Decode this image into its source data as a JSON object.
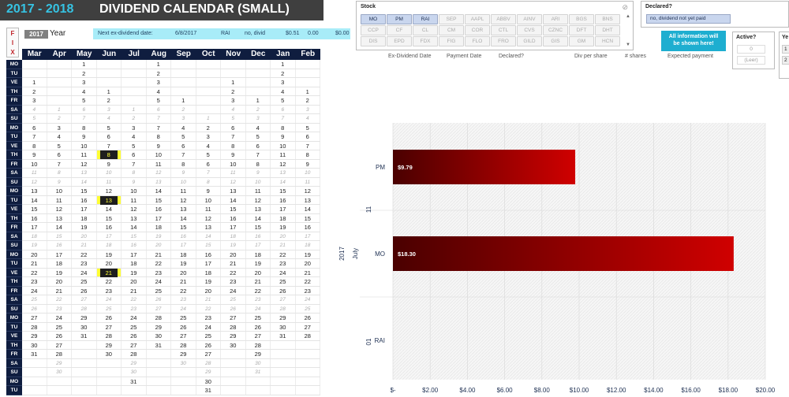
{
  "title": {
    "year_range": "2017 - 2018",
    "main": "DIVIDEND CALENDAR (SMALL)"
  },
  "fix_letters": [
    "F",
    "I",
    "X"
  ],
  "year_selector": {
    "value": "2017",
    "label": "Year"
  },
  "next_ex_dividend": {
    "label": "Next ex-dividend date:",
    "date": "6/8/2017",
    "ticker": "RAI",
    "note": "no, divid",
    "amount": "$0.51",
    "shares": "0.00",
    "expected": "$0.00"
  },
  "calendar": {
    "months": [
      "Mar",
      "Apr",
      "May",
      "Jun",
      "Jul",
      "Aug",
      "Sep",
      "Oct",
      "Nov",
      "Dec",
      "Jan",
      "Feb"
    ],
    "day_labels": [
      "MO",
      "TU",
      "VE",
      "TH",
      "FR",
      "SA",
      "SU",
      "MO",
      "TU",
      "VE",
      "TH",
      "FR",
      "SA",
      "SU",
      "MO",
      "TU",
      "VE",
      "TH",
      "FR",
      "SA",
      "SU",
      "MO",
      "TU",
      "VE",
      "TH",
      "FR",
      "SA",
      "SU",
      "MO",
      "TU",
      "VE",
      "TH",
      "FR",
      "SA",
      "SU",
      "MO",
      "TU",
      "VE",
      "TH",
      "FR",
      "SA",
      "SU",
      "MO",
      "TU",
      "VE",
      "TH",
      "FR",
      "SA",
      "SU",
      "MO",
      "TU",
      "VE",
      "TH",
      "FR",
      "SA",
      "SU",
      "MO",
      "TU",
      "VE",
      "TH",
      "FR",
      "SA",
      "SU",
      "MO",
      "TU",
      "VE",
      "TH",
      "FR",
      "SA",
      "SU",
      "MO",
      "TU",
      "VE",
      "TH",
      "FR",
      "SA",
      "SU"
    ],
    "weekend_rows": [
      5,
      6,
      12,
      13,
      19,
      20,
      26,
      27,
      33,
      34
    ],
    "rows": [
      [
        "",
        "",
        "1",
        "",
        "",
        "1",
        "",
        "",
        "",
        "",
        "1",
        ""
      ],
      [
        "",
        "",
        "2",
        "",
        "",
        "2",
        "",
        "",
        "",
        "",
        "2",
        ""
      ],
      [
        "1",
        "",
        "3",
        "",
        "",
        "3",
        "",
        "",
        "1",
        "",
        "3",
        ""
      ],
      [
        "2",
        "",
        "4",
        "1",
        "",
        "4",
        "",
        "",
        "2",
        "",
        "4",
        "1"
      ],
      [
        "3",
        "",
        "5",
        "2",
        "",
        "5",
        "1",
        "",
        "3",
        "1",
        "5",
        "2"
      ],
      [
        "4",
        "1",
        "6",
        "3",
        "1",
        "6",
        "2",
        "",
        "4",
        "2",
        "6",
        "3"
      ],
      [
        "5",
        "2",
        "7",
        "4",
        "2",
        "7",
        "3",
        "1",
        "5",
        "3",
        "7",
        "4"
      ],
      [
        "6",
        "3",
        "8",
        "5",
        "3",
        "7",
        "4",
        "2",
        "6",
        "4",
        "8",
        "5"
      ],
      [
        "7",
        "4",
        "9",
        "6",
        "4",
        "8",
        "5",
        "3",
        "7",
        "5",
        "9",
        "6"
      ],
      [
        "8",
        "5",
        "10",
        "7",
        "5",
        "9",
        "6",
        "4",
        "8",
        "6",
        "10",
        "7"
      ],
      [
        "9",
        "6",
        "11",
        "8",
        "6",
        "10",
        "7",
        "5",
        "9",
        "7",
        "11",
        "8"
      ],
      [
        "10",
        "7",
        "12",
        "9",
        "7",
        "11",
        "8",
        "6",
        "10",
        "8",
        "12",
        "9"
      ],
      [
        "11",
        "8",
        "13",
        "10",
        "8",
        "12",
        "9",
        "7",
        "11",
        "9",
        "13",
        "10"
      ],
      [
        "12",
        "9",
        "14",
        "11",
        "9",
        "13",
        "10",
        "8",
        "12",
        "10",
        "14",
        "11"
      ],
      [
        "13",
        "10",
        "15",
        "12",
        "10",
        "14",
        "11",
        "9",
        "13",
        "11",
        "15",
        "12"
      ],
      [
        "14",
        "11",
        "16",
        "13",
        "11",
        "15",
        "12",
        "10",
        "14",
        "12",
        "16",
        "13"
      ],
      [
        "15",
        "12",
        "17",
        "14",
        "12",
        "16",
        "13",
        "11",
        "15",
        "13",
        "17",
        "14"
      ],
      [
        "16",
        "13",
        "18",
        "15",
        "13",
        "17",
        "14",
        "12",
        "16",
        "14",
        "18",
        "15"
      ],
      [
        "17",
        "14",
        "19",
        "16",
        "14",
        "18",
        "15",
        "13",
        "17",
        "15",
        "19",
        "16"
      ],
      [
        "18",
        "15",
        "20",
        "17",
        "15",
        "19",
        "16",
        "14",
        "18",
        "16",
        "20",
        "17"
      ],
      [
        "19",
        "16",
        "21",
        "18",
        "16",
        "20",
        "17",
        "15",
        "19",
        "17",
        "21",
        "18"
      ],
      [
        "20",
        "17",
        "22",
        "19",
        "17",
        "21",
        "18",
        "16",
        "20",
        "18",
        "22",
        "19"
      ],
      [
        "21",
        "18",
        "23",
        "20",
        "18",
        "22",
        "19",
        "17",
        "21",
        "19",
        "23",
        "20"
      ],
      [
        "22",
        "19",
        "24",
        "21",
        "19",
        "23",
        "20",
        "18",
        "22",
        "20",
        "24",
        "21"
      ],
      [
        "23",
        "20",
        "25",
        "22",
        "20",
        "24",
        "21",
        "19",
        "23",
        "21",
        "25",
        "22"
      ],
      [
        "24",
        "21",
        "26",
        "23",
        "21",
        "25",
        "22",
        "20",
        "24",
        "22",
        "26",
        "23"
      ],
      [
        "25",
        "22",
        "27",
        "24",
        "22",
        "26",
        "23",
        "21",
        "25",
        "23",
        "27",
        "24"
      ],
      [
        "26",
        "23",
        "28",
        "25",
        "23",
        "27",
        "24",
        "22",
        "26",
        "24",
        "28",
        "25"
      ],
      [
        "27",
        "24",
        "29",
        "26",
        "24",
        "28",
        "25",
        "23",
        "27",
        "25",
        "29",
        "26"
      ],
      [
        "28",
        "25",
        "30",
        "27",
        "25",
        "29",
        "26",
        "24",
        "28",
        "26",
        "30",
        "27"
      ],
      [
        "29",
        "26",
        "31",
        "28",
        "26",
        "30",
        "27",
        "25",
        "29",
        "27",
        "31",
        "28"
      ],
      [
        "30",
        "27",
        "",
        "29",
        "27",
        "31",
        "28",
        "26",
        "30",
        "28",
        "",
        ""
      ],
      [
        "31",
        "28",
        "",
        "30",
        "28",
        "",
        "29",
        "27",
        "",
        "29",
        "",
        ""
      ],
      [
        "",
        "29",
        "",
        "",
        "29",
        "",
        "30",
        "28",
        "",
        "30",
        "",
        ""
      ],
      [
        "",
        "30",
        "",
        "",
        "30",
        "",
        "",
        "29",
        "",
        "31",
        "",
        ""
      ],
      [
        "",
        "",
        "",
        "",
        "31",
        "",
        "",
        "30",
        "",
        "",
        "",
        ""
      ],
      [
        "",
        "",
        "",
        "",
        "",
        "",
        "",
        "31",
        "",
        "",
        "",
        ""
      ]
    ],
    "highlights": [
      {
        "row": 10,
        "col": 3
      },
      {
        "row": 15,
        "col": 3
      },
      {
        "row": 23,
        "col": 3
      }
    ]
  },
  "stock_slicer": {
    "label": "Stock",
    "items": [
      "MO",
      "PM",
      "RAI",
      "SEP",
      "AAPL",
      "ABBV",
      "AINV",
      "ARI",
      "BGS",
      "BNS",
      "CCP",
      "CF",
      "CL",
      "CM",
      "COR",
      "CTL",
      "CVS",
      "CZNC",
      "DFT",
      "DHT",
      "DIS",
      "EPD",
      "FDX",
      "FIG",
      "FLO",
      "FRO",
      "GILD",
      "GIS",
      "GM",
      "HCN"
    ],
    "selected": [
      "MO",
      "PM",
      "RAI"
    ]
  },
  "declared_slicer": {
    "label": "Declared?",
    "option": "no, dividend not yet paid"
  },
  "info_tooltip": {
    "line1": "All information will",
    "line2": "be shown here!"
  },
  "active_slicer": {
    "label": "Active?",
    "options": [
      "0",
      "(Leer)"
    ]
  },
  "year_slicer": {
    "label": "Ye",
    "options": [
      "1",
      "2"
    ]
  },
  "column_headers": [
    "Ex-Dividend Date",
    "Payment Date",
    "Declared?",
    "Div per share",
    "# shares",
    "Expected payment"
  ],
  "chart_data": {
    "type": "bar",
    "orientation": "horizontal",
    "categories": [
      "PM",
      "MO",
      "RAI"
    ],
    "values": [
      9.79,
      18.3,
      0
    ],
    "data_labels": [
      "$9.79",
      "$18.30",
      ""
    ],
    "group_labels": [
      "2017",
      "July",
      "11",
      "01"
    ],
    "x_ticks": [
      "$-",
      "$2.00",
      "$4.00",
      "$6.00",
      "$8.00",
      "$10.00",
      "$12.00",
      "$14.00",
      "$16.00",
      "$18.00",
      "$20.00"
    ],
    "xlim": [
      0,
      20
    ],
    "bar_color": "#a00000",
    "grid": true
  }
}
